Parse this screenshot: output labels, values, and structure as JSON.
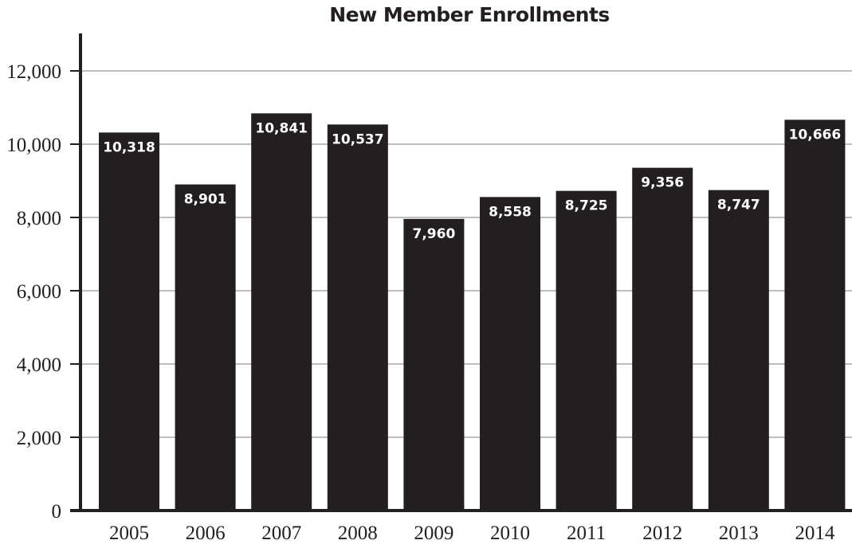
{
  "chart_data": {
    "type": "bar",
    "title": "New Member Enrollments",
    "xlabel": "",
    "ylabel": "",
    "categories": [
      "2005",
      "2006",
      "2007",
      "2008",
      "2009",
      "2010",
      "2011",
      "2012",
      "2013",
      "2014"
    ],
    "values": [
      10318,
      8901,
      10841,
      10537,
      7960,
      8558,
      8725,
      9356,
      8747,
      10666
    ],
    "value_labels": [
      "10,318",
      "8,901",
      "10,841",
      "10,537",
      "7,960",
      "8,558",
      "8,725",
      "9,356",
      "8,747",
      "10,666"
    ],
    "ylim": [
      0,
      13000
    ],
    "yticks": [
      0,
      2000,
      4000,
      6000,
      8000,
      10000,
      12000
    ],
    "ytick_labels": [
      "0",
      "2,000",
      "4,000",
      "6,000",
      "8,000",
      "10,000",
      "12,000"
    ],
    "grid": true,
    "legend": "none",
    "colors": {
      "bar": "#231f20",
      "axis": "#231f20",
      "grid": "#bcbec0",
      "data_label": "#ffffff"
    }
  }
}
